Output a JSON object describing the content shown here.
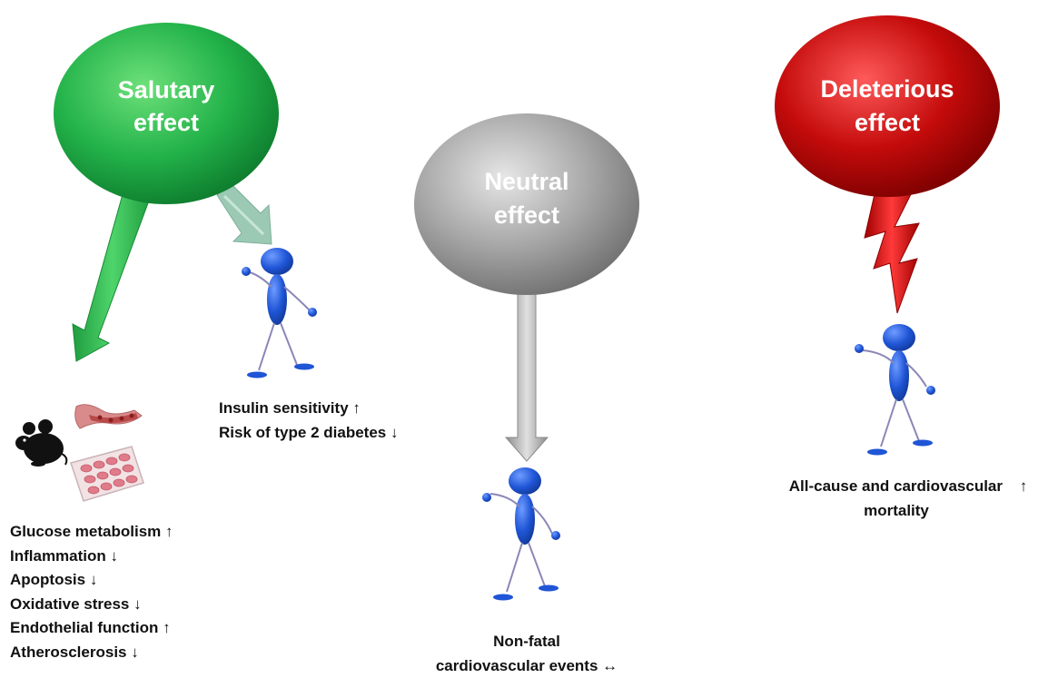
{
  "salutary": {
    "title_line1": "Salutary",
    "title_line2": "effect",
    "color": "#22b14c",
    "human_outcomes": [
      {
        "text": "Insulin sensitivity",
        "arrow": "↑"
      },
      {
        "text": "Risk of type 2 diabetes",
        "arrow": "↓"
      }
    ],
    "experimental_outcomes": [
      {
        "text": "Glucose metabolism",
        "arrow": "↑"
      },
      {
        "text": "Inflammation",
        "arrow": "↓"
      },
      {
        "text": "Apoptosis",
        "arrow": "↓"
      },
      {
        "text": "Oxidative stress",
        "arrow": "↓"
      },
      {
        "text": "Endothelial function",
        "arrow": "↑"
      },
      {
        "text": "Atherosclerosis",
        "arrow": "↓"
      }
    ],
    "icons": [
      "mouse-icon",
      "blood-vessel-icon",
      "cell-culture-plate-icon"
    ]
  },
  "neutral": {
    "title_line1": "Neutral",
    "title_line2": "effect",
    "color": "#9e9e9e",
    "outcome_line1": "Non-fatal",
    "outcome_line2": "cardiovascular events",
    "outcome_arrow": "↔"
  },
  "deleterious": {
    "title_line1": "Deleterious",
    "title_line2": "effect",
    "color": "#c00000",
    "outcome_line1": "All-cause and cardiovascular",
    "outcome_arrow": "↑",
    "outcome_line2": "mortality"
  }
}
